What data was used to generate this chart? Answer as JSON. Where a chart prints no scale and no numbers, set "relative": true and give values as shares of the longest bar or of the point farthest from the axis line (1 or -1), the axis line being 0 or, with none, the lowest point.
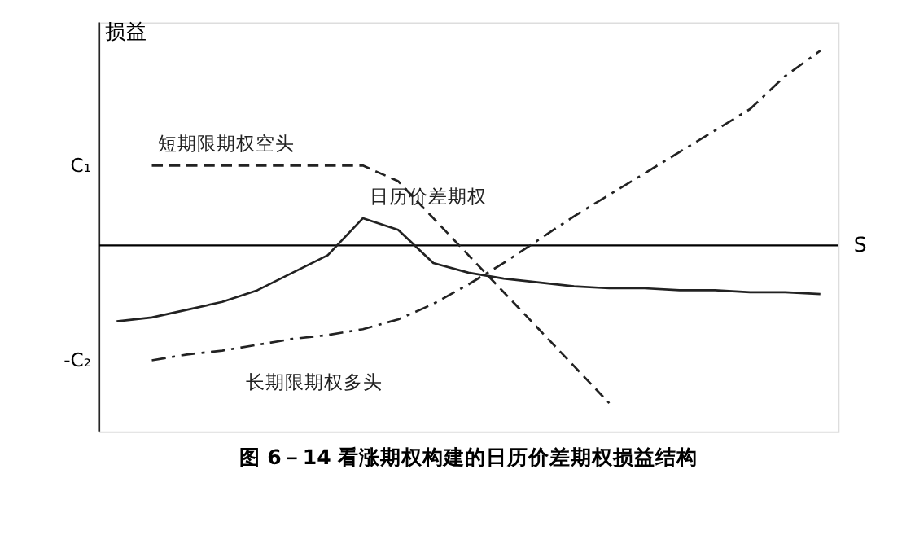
{
  "chart_data": {
    "type": "line",
    "title": "图 6－14 看涨期权构建的日历价差期权损益结构",
    "xlabel": "S",
    "ylabel": "损益",
    "relative": true,
    "tick_labels": false,
    "grid": false,
    "legend": false,
    "marker": "none",
    "annotations": [
      "C₁",
      "-C₂"
    ],
    "categories": [
      null,
      null,
      null,
      null,
      null,
      null,
      null,
      null,
      null,
      null,
      null,
      null,
      null,
      null,
      null,
      null,
      null,
      null,
      null,
      null,
      null
    ],
    "series": [
      {
        "name": "短期限期权空头",
        "color": "#222222",
        "line_style": "dashed",
        "values": [
          null,
          0.41,
          0.41,
          0.41,
          0.41,
          0.41,
          0.41,
          0.41,
          0.33,
          0.14,
          -0.05,
          -0.24,
          -0.43,
          -0.62,
          -0.81,
          null,
          null,
          null,
          null,
          null,
          null
        ]
      },
      {
        "name": "日历价差期权",
        "color": "#222222",
        "line_style": "solid",
        "values": [
          -0.39,
          -0.37,
          -0.33,
          -0.29,
          -0.23,
          -0.14,
          -0.05,
          0.14,
          0.08,
          -0.09,
          -0.14,
          -0.17,
          -0.19,
          -0.21,
          -0.22,
          -0.22,
          -0.23,
          -0.23,
          -0.24,
          -0.24,
          -0.25
        ]
      },
      {
        "name": "长期限期权多头",
        "color": "#222222",
        "line_style": "dashdot",
        "values": [
          null,
          -0.59,
          -0.56,
          -0.54,
          -0.51,
          -0.48,
          -0.46,
          -0.43,
          -0.38,
          -0.3,
          -0.2,
          -0.09,
          0.03,
          0.15,
          0.26,
          0.37,
          0.48,
          0.59,
          0.7,
          0.87,
          1.0
        ]
      }
    ]
  }
}
